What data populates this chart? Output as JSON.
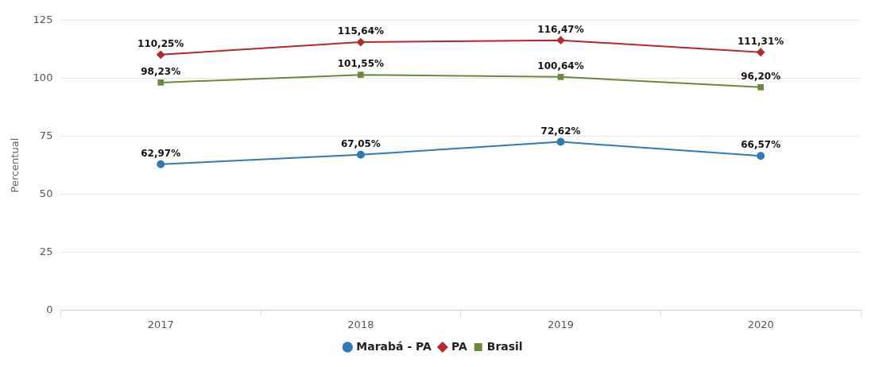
{
  "chart_data": {
    "type": "line",
    "ylabel": "Percentual",
    "categories": [
      "2017",
      "2018",
      "2019",
      "2020"
    ],
    "series": [
      {
        "name": "Marabá - PA",
        "color": "#2b7bb9",
        "marker": "circle",
        "values": [
          62.97,
          67.05,
          72.62,
          66.57
        ],
        "value_labels": [
          "62,97%",
          "67,05%",
          "72,62%",
          "66,57%"
        ]
      },
      {
        "name": "PA",
        "color": "#b22a2a",
        "marker": "diamond",
        "values": [
          110.25,
          115.64,
          116.47,
          111.31
        ],
        "value_labels": [
          "110,25%",
          "115,64%",
          "116,47%",
          "111,31%"
        ]
      },
      {
        "name": "Brasil",
        "color": "#6a8a3a",
        "marker": "square",
        "values": [
          98.23,
          101.55,
          100.64,
          96.2
        ],
        "value_labels": [
          "98,23%",
          "101,55%",
          "100,64%",
          "96,20%"
        ]
      }
    ],
    "ylim": [
      0,
      125
    ],
    "yticks": [
      0,
      25,
      50,
      75,
      100,
      125
    ],
    "grid": "y",
    "legend": "bottom"
  }
}
